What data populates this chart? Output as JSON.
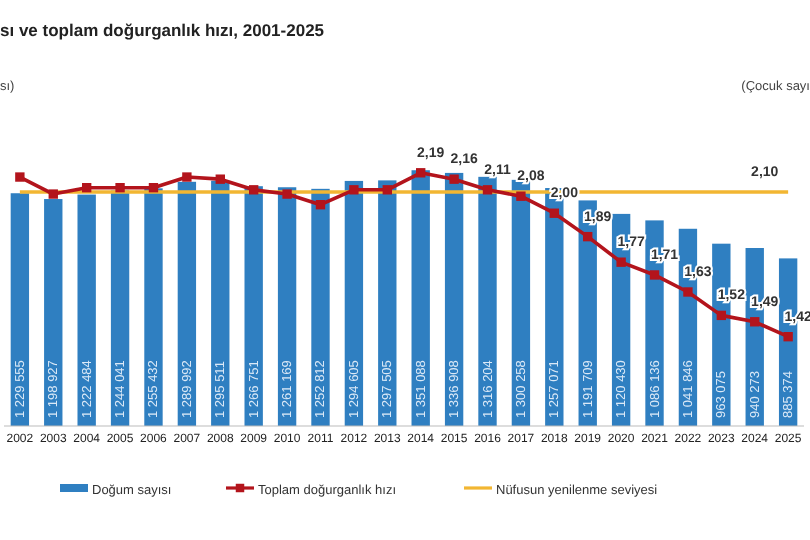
{
  "chart_data": {
    "type": "bar",
    "title": "sı ve toplam doğurganlık hızı, 2001-2025",
    "annotations": [
      "sı)",
      "(Çocuk sayı"
    ],
    "categories": [
      "2002",
      "2003",
      "2004",
      "2005",
      "2006",
      "2007",
      "2008",
      "2009",
      "2010",
      "2011",
      "2012",
      "2013",
      "2014",
      "2015",
      "2016",
      "2017",
      "2018",
      "2019",
      "2020",
      "2021",
      "2022",
      "2023",
      "2024",
      "2025"
    ],
    "series": [
      {
        "name": "Doğum sayısı",
        "color": "#2f7fc1",
        "values": [
          1229555,
          1198927,
          1222484,
          1244041,
          1255432,
          1289992,
          1295511,
          1266751,
          1261169,
          1252812,
          1294605,
          1297505,
          1351088,
          1336908,
          1316204,
          1300258,
          1257071,
          1191709,
          1120430,
          1086136,
          1041846,
          963075,
          940273,
          885374
        ],
        "value_labels": [
          "1 229 555",
          "1 198 927",
          "1 222 484",
          "1 244 041",
          "1 255 432",
          "1 289 992",
          "1 295 511",
          "1 266 751",
          "1 261 169",
          "1 252 812",
          "1 294 605",
          "1 297 505",
          "1 351 088",
          "1 336 908",
          "1 316 204",
          "1 300 258",
          "1 257 071",
          "1 191 709",
          "1 120 430",
          "1 086 136",
          "1 041 846",
          "963 075",
          "940 273",
          "885 374"
        ]
      },
      {
        "name": "Nüfusun yenilenme seviyesi",
        "type": "line",
        "axis": "y2",
        "color": "#f2b632",
        "values": [
          2.1,
          2.1,
          2.1,
          2.1,
          2.1,
          2.1,
          2.1,
          2.1,
          2.1,
          2.1,
          2.1,
          2.1,
          2.1,
          2.1,
          2.1,
          2.1,
          2.1,
          2.1,
          2.1,
          2.1,
          2.1,
          2.1,
          2.1,
          2.1
        ],
        "value_labels": [
          null,
          null,
          null,
          null,
          null,
          null,
          null,
          null,
          null,
          null,
          null,
          null,
          null,
          null,
          null,
          null,
          null,
          null,
          null,
          null,
          null,
          null,
          "2,10",
          null
        ]
      },
      {
        "name": "Toplam doğurganlık hızı",
        "type": "line",
        "axis": "y2",
        "color": "#b3141c",
        "marker": "square",
        "values": [
          2.17,
          2.09,
          2.12,
          2.12,
          2.12,
          2.17,
          2.16,
          2.11,
          2.09,
          2.04,
          2.11,
          2.11,
          2.19,
          2.16,
          2.11,
          2.08,
          2.0,
          1.89,
          1.77,
          1.71,
          1.63,
          1.52,
          1.49,
          1.42
        ],
        "value_labels": [
          null,
          null,
          null,
          null,
          null,
          null,
          null,
          null,
          null,
          null,
          null,
          null,
          "2,19",
          "2,16",
          "2,11",
          "2,08",
          "2,00",
          "1,89",
          "1,77",
          "1,71",
          "1,63",
          "1,52",
          "1,49",
          "1,42"
        ]
      }
    ],
    "tick_labels": "x",
    "legend": "bottom"
  }
}
